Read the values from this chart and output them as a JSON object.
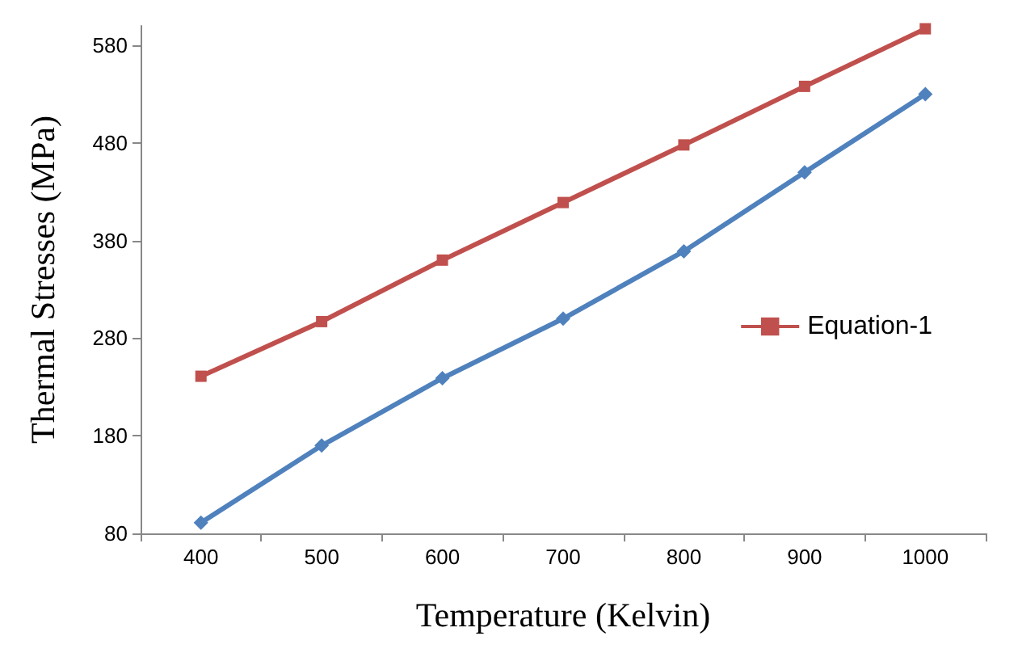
{
  "chart_data": {
    "type": "line",
    "xlabel": "Temperature (Kelvin)",
    "ylabel": "Thermal Stresses (MPa)",
    "categories": [
      "400",
      "500",
      "600",
      "700",
      "800",
      "900",
      "1000"
    ],
    "series": [
      {
        "color": "#4f81bd",
        "marker": "diamond",
        "values": [
          91,
          170,
          239,
          300,
          369,
          450,
          530
        ]
      },
      {
        "name": "Equation-1",
        "color": "#c0504d",
        "marker": "square",
        "values": [
          241,
          297,
          360,
          419,
          478,
          538,
          597
        ]
      }
    ],
    "ylim": [
      80,
      600
    ],
    "yticks": [
      80,
      180,
      280,
      380,
      480,
      580
    ],
    "grid": false,
    "legend": "right",
    "line_style": "solid"
  }
}
